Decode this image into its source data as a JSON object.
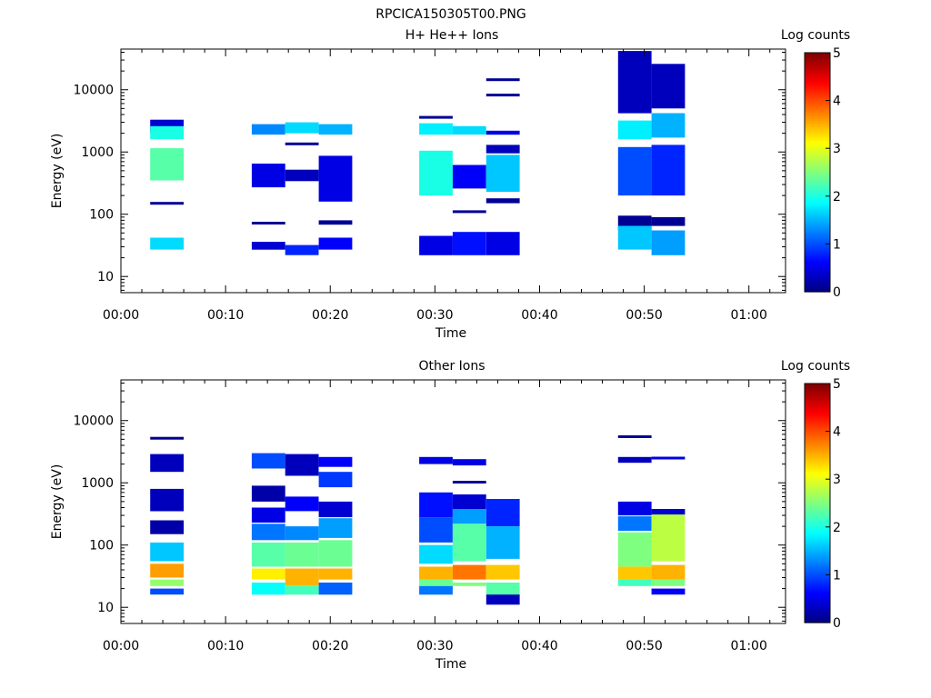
{
  "page_title": "RPCICA150305T00.PNG",
  "colormap": [
    "#00007f",
    "#0000ff",
    "#007fff",
    "#00ffff",
    "#7fff7f",
    "#ffff00",
    "#ff7f00",
    "#ff0000",
    "#7f0000"
  ],
  "chart_data": [
    {
      "type": "heatmap",
      "title": "H+ He++ Ions",
      "xlabel": "Time",
      "ylabel": "Energy (eV)",
      "x_ticks": [
        "00:00",
        "00:10",
        "00:20",
        "00:30",
        "00:40",
        "00:50",
        "01:00"
      ],
      "x_range_minutes": [
        0,
        63.5
      ],
      "y_scale": "log",
      "y_range": [
        5.5,
        45000
      ],
      "y_ticks": [
        {
          "value": 10,
          "label": "10"
        },
        {
          "value": 100,
          "label": "100"
        },
        {
          "value": 1000,
          "label": "1000"
        },
        {
          "value": 10000,
          "label": "10000"
        }
      ],
      "colorbar": {
        "label": "Log counts",
        "range": [
          0,
          5
        ],
        "ticks": [
          "0",
          "1",
          "2",
          "3",
          "4",
          "5"
        ]
      },
      "columns": [
        {
          "t0": 2.8,
          "t1": 6.0,
          "cells": [
            [
              3300,
              2000,
              0.4
            ],
            [
              2600,
              1600,
              2.0
            ],
            [
              1150,
              350,
              2.3
            ],
            [
              150,
              150,
              0.1
            ],
            [
              42,
              27,
              1.7
            ]
          ]
        },
        {
          "t0": 12.5,
          "t1": 15.7,
          "cells": [
            [
              2800,
              1900,
              1.3
            ],
            [
              650,
              270,
              0.5
            ],
            [
              72,
              72,
              0.1
            ],
            [
              36,
              27,
              0.4
            ]
          ]
        },
        {
          "t0": 15.7,
          "t1": 18.9,
          "cells": [
            [
              3000,
              2000,
              1.7
            ],
            [
              1350,
              1350,
              0.1
            ],
            [
              520,
              340,
              0.3
            ],
            [
              32,
              22,
              0.8
            ]
          ]
        },
        {
          "t0": 18.9,
          "t1": 22.1,
          "cells": [
            [
              2800,
              1900,
              1.5
            ],
            [
              870,
              160,
              0.5
            ],
            [
              80,
              68,
              0.1
            ],
            [
              42,
              27,
              0.6
            ]
          ]
        },
        {
          "t0": 28.5,
          "t1": 31.7,
          "cells": [
            [
              3600,
              3600,
              0.1
            ],
            [
              2900,
              1900,
              1.8
            ],
            [
              1050,
              200,
              2.0
            ],
            [
              45,
              22,
              0.5
            ]
          ]
        },
        {
          "t0": 31.7,
          "t1": 34.9,
          "cells": [
            [
              2600,
              1900,
              1.7
            ],
            [
              620,
              260,
              0.6
            ],
            [
              110,
              110,
              0.1
            ],
            [
              52,
              22,
              0.7
            ]
          ]
        },
        {
          "t0": 34.9,
          "t1": 38.1,
          "cells": [
            [
              14500,
              14500,
              0.1
            ],
            [
              8200,
              8200,
              0.1
            ],
            [
              2200,
              1900,
              0.5
            ],
            [
              1300,
              950,
              0.3
            ],
            [
              900,
              230,
              1.6
            ],
            [
              180,
              150,
              0.1
            ],
            [
              52,
              22,
              0.5
            ]
          ]
        },
        {
          "t0": 47.5,
          "t1": 50.7,
          "cells": [
            [
              42000,
              4200,
              0.3
            ],
            [
              3200,
              1600,
              1.8
            ],
            [
              1200,
              200,
              1.0
            ],
            [
              95,
              55,
              0.1
            ],
            [
              65,
              27,
              1.6
            ]
          ]
        },
        {
          "t0": 50.7,
          "t1": 53.9,
          "cells": [
            [
              26000,
              5000,
              0.3
            ],
            [
              4200,
              1700,
              1.5
            ],
            [
              1300,
              200,
              0.8
            ],
            [
              90,
              65,
              0.1
            ],
            [
              55,
              22,
              1.4
            ]
          ]
        }
      ]
    },
    {
      "type": "heatmap",
      "title": "Other Ions",
      "xlabel": "Time",
      "ylabel": "Energy (eV)",
      "x_ticks": [
        "00:00",
        "00:10",
        "00:20",
        "00:30",
        "00:40",
        "00:50",
        "01:00"
      ],
      "x_range_minutes": [
        0,
        63.5
      ],
      "y_scale": "log",
      "y_range": [
        5.5,
        45000
      ],
      "y_ticks": [
        {
          "value": 10,
          "label": "10"
        },
        {
          "value": 100,
          "label": "100"
        },
        {
          "value": 1000,
          "label": "1000"
        },
        {
          "value": 10000,
          "label": "10000"
        }
      ],
      "colorbar": {
        "label": "Log counts",
        "range": [
          0,
          5
        ],
        "ticks": [
          "0",
          "1",
          "2",
          "3",
          "4",
          "5"
        ]
      },
      "columns": [
        {
          "t0": 2.8,
          "t1": 6.0,
          "cells": [
            [
              5200,
              5200,
              0.1
            ],
            [
              2900,
              1500,
              0.3
            ],
            [
              800,
              350,
              0.3
            ],
            [
              250,
              150,
              0.2
            ],
            [
              110,
              55,
              1.6
            ],
            [
              50,
              30,
              3.6
            ],
            [
              28,
              22,
              2.6
            ],
            [
              20,
              16,
              1.0
            ]
          ]
        },
        {
          "t0": 12.5,
          "t1": 15.7,
          "cells": [
            [
              3000,
              1700,
              1.0
            ],
            [
              900,
              500,
              0.2
            ],
            [
              400,
              230,
              0.5
            ],
            [
              220,
              120,
              1.2
            ],
            [
              110,
              45,
              2.3
            ],
            [
              42,
              28,
              3.2
            ],
            [
              25,
              16,
              1.9
            ]
          ]
        },
        {
          "t0": 15.7,
          "t1": 18.9,
          "cells": [
            [
              2900,
              1300,
              0.3
            ],
            [
              600,
              350,
              0.6
            ],
            [
              200,
              120,
              1.3
            ],
            [
              110,
              45,
              2.4
            ],
            [
              42,
              22,
              3.5
            ],
            [
              22,
              16,
              2.2
            ]
          ]
        },
        {
          "t0": 18.9,
          "t1": 22.1,
          "cells": [
            [
              2600,
              1800,
              0.6
            ],
            [
              1500,
              850,
              0.9
            ],
            [
              500,
              280,
              0.4
            ],
            [
              270,
              130,
              1.4
            ],
            [
              120,
              45,
              2.4
            ],
            [
              42,
              28,
              3.5
            ],
            [
              25,
              16,
              1.1
            ]
          ]
        },
        {
          "t0": 28.5,
          "t1": 31.7,
          "cells": [
            [
              2600,
              2000,
              0.5
            ],
            [
              700,
              280,
              0.7
            ],
            [
              280,
              110,
              1.0
            ],
            [
              100,
              50,
              1.7
            ],
            [
              45,
              28,
              3.5
            ],
            [
              28,
              22,
              2.4
            ],
            [
              22,
              16,
              1.2
            ]
          ]
        },
        {
          "t0": 31.7,
          "t1": 34.9,
          "cells": [
            [
              2400,
              1900,
              0.5
            ],
            [
              1050,
              1000,
              0.1
            ],
            [
              650,
              380,
              0.4
            ],
            [
              380,
              220,
              1.4
            ],
            [
              220,
              55,
              2.3
            ],
            [
              48,
              28,
              3.8
            ],
            [
              25,
              22,
              2.5
            ]
          ]
        },
        {
          "t0": 34.9,
          "t1": 38.1,
          "cells": [
            [
              550,
              200,
              0.8
            ],
            [
              200,
              60,
              1.5
            ],
            [
              48,
              28,
              3.4
            ],
            [
              25,
              16,
              2.3
            ],
            [
              16,
              11,
              0.3
            ]
          ]
        },
        {
          "t0": 47.5,
          "t1": 50.7,
          "cells": [
            [
              5500,
              5500,
              0.1
            ],
            [
              2600,
              2100,
              0.3
            ],
            [
              500,
              300,
              0.5
            ],
            [
              290,
              170,
              1.2
            ],
            [
              160,
              45,
              2.5
            ],
            [
              45,
              28,
              3.4
            ],
            [
              28,
              22,
              2.2
            ]
          ]
        },
        {
          "t0": 50.7,
          "t1": 53.9,
          "cells": [
            [
              2600,
              2400,
              0.5
            ],
            [
              380,
              300,
              0.4
            ],
            [
              310,
              55,
              2.8
            ],
            [
              48,
              28,
              3.5
            ],
            [
              28,
              22,
              2.5
            ],
            [
              20,
              16,
              0.6
            ]
          ]
        }
      ]
    }
  ]
}
